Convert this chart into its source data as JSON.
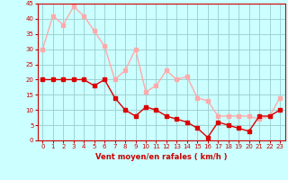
{
  "x": [
    0,
    1,
    2,
    3,
    4,
    5,
    6,
    7,
    8,
    9,
    10,
    11,
    12,
    13,
    14,
    15,
    16,
    17,
    18,
    19,
    20,
    21,
    22,
    23
  ],
  "y_mean": [
    20,
    20,
    20,
    20,
    20,
    18,
    20,
    14,
    10,
    8,
    11,
    10,
    8,
    7,
    6,
    4,
    1,
    6,
    5,
    4,
    3,
    8,
    8,
    10
  ],
  "y_gust": [
    30,
    41,
    38,
    44,
    41,
    36,
    31,
    20,
    23,
    30,
    16,
    18,
    23,
    20,
    21,
    14,
    13,
    8,
    8,
    8,
    8,
    7,
    8,
    14
  ],
  "mean_color": "#dd0000",
  "gust_color": "#ffaaaa",
  "bg_color": "#ccffff",
  "grid_color": "#99cccc",
  "axis_color": "#cc0000",
  "xlabel": "Vent moyen/en rafales ( km/h )",
  "xlabel_color": "#cc0000",
  "ylim": [
    0,
    45
  ],
  "yticks": [
    0,
    5,
    10,
    15,
    20,
    25,
    30,
    35,
    40,
    45
  ],
  "xticks": [
    0,
    1,
    2,
    3,
    4,
    5,
    6,
    7,
    8,
    9,
    10,
    11,
    12,
    13,
    14,
    15,
    16,
    17,
    18,
    19,
    20,
    21,
    22,
    23
  ],
  "marker_size": 2.5,
  "line_width": 1.0
}
